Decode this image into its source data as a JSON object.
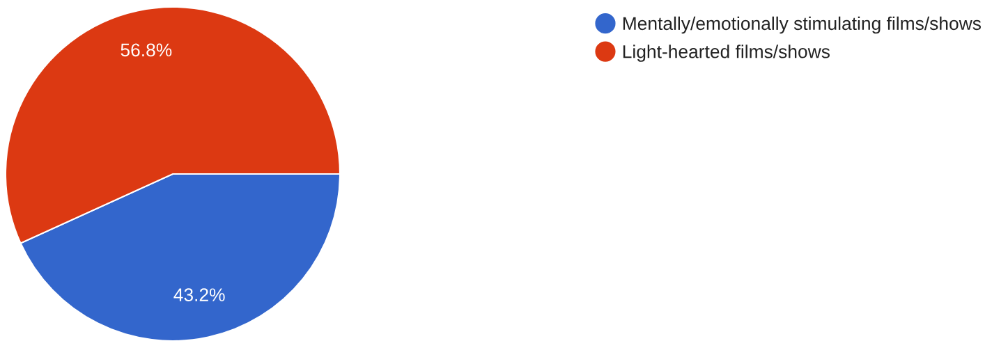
{
  "chart_data": {
    "type": "pie",
    "categories": [
      "Mentally/emotionally stimulating films/shows",
      "Light-hearted films/shows"
    ],
    "values": [
      43.2,
      56.8
    ],
    "colors": [
      "#3366cc",
      "#dc3912"
    ],
    "value_labels": [
      "43.2%",
      "56.8%"
    ],
    "legend": "top right"
  }
}
